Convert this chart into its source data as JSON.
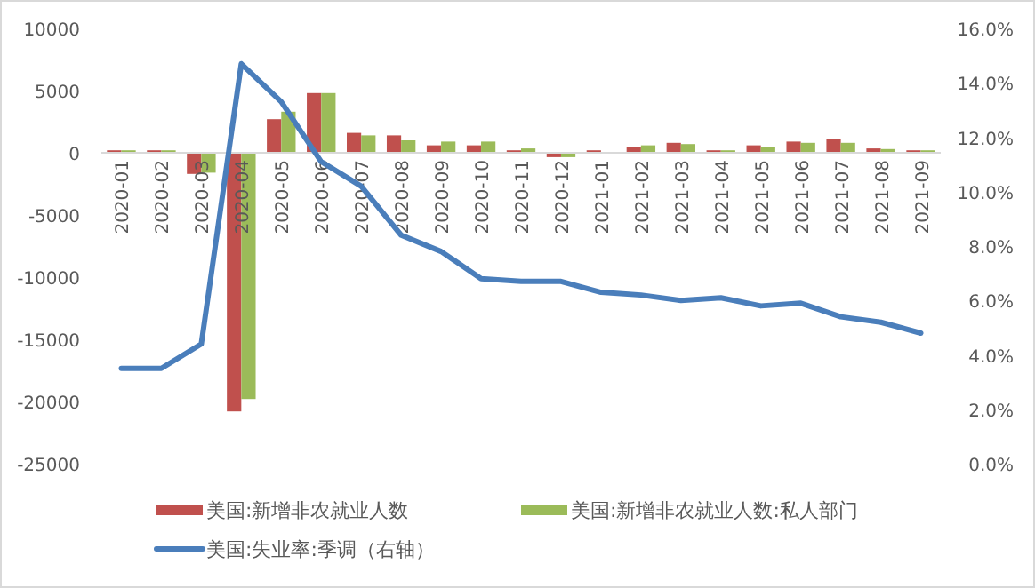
{
  "chart_data": {
    "type": "bar",
    "categories": [
      "2020-01",
      "2020-02",
      "2020-03",
      "2020-04",
      "2020-05",
      "2020-06",
      "2020-07",
      "2020-08",
      "2020-09",
      "2020-10",
      "2020-11",
      "2020-12",
      "2021-01",
      "2021-02",
      "2021-03",
      "2021-04",
      "2021-05",
      "2021-06",
      "2021-07",
      "2021-08",
      "2021-09"
    ],
    "series": [
      {
        "name": "美国:新增非农就业人数",
        "color": "#c0504d",
        "values": [
          200,
          200,
          -1700,
          -20800,
          2700,
          4800,
          1600,
          1400,
          600,
          600,
          200,
          -350,
          200,
          500,
          800,
          200,
          600,
          900,
          1100,
          350,
          200
        ]
      },
      {
        "name": "美国:新增非农就业人数:私人部门",
        "color": "#9bbb59",
        "values": [
          200,
          200,
          -1600,
          -19800,
          3300,
          4800,
          1400,
          1000,
          900,
          900,
          350,
          -350,
          0,
          600,
          700,
          200,
          500,
          800,
          800,
          300,
          200
        ]
      },
      {
        "name": "美国:失业率:季调（右轴）",
        "type": "line",
        "axis": "y2",
        "color": "#4a7ebb",
        "values": [
          3.5,
          3.5,
          4.4,
          14.7,
          13.3,
          11.1,
          10.2,
          8.4,
          7.8,
          6.8,
          6.7,
          6.7,
          6.3,
          6.2,
          6.0,
          6.1,
          5.8,
          5.9,
          5.4,
          5.2,
          4.8
        ]
      }
    ],
    "ylim": [
      -25000,
      10000
    ],
    "yticks": [
      -25000,
      -20000,
      -15000,
      -10000,
      -5000,
      0,
      5000,
      10000
    ],
    "y2lim": [
      0,
      16
    ],
    "y2ticks": [
      {
        "value": 0,
        "label": "0.0%"
      },
      {
        "value": 2,
        "label": "2.0%"
      },
      {
        "value": 4,
        "label": "4.0%"
      },
      {
        "value": 6,
        "label": "6.0%"
      },
      {
        "value": 8,
        "label": "8.0%"
      },
      {
        "value": 10,
        "label": "10.0%"
      },
      {
        "value": 12,
        "label": "12.0%"
      },
      {
        "value": 14,
        "label": "14.0%"
      },
      {
        "value": 16,
        "label": "16.0%"
      }
    ],
    "grid": false,
    "legend": "bottom"
  }
}
